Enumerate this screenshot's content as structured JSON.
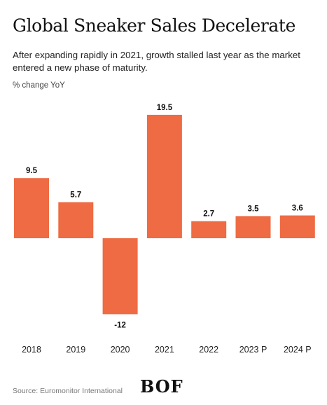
{
  "header": {
    "title": "Global Sneaker Sales Decelerate",
    "subtitle": "After expanding rapidly in 2021, growth stalled last year as the market entered a new phase of maturity.",
    "unit_label": "% change YoY"
  },
  "footer": {
    "source": "Source: Euromonitor International",
    "logo": "BOF"
  },
  "colors": {
    "bar": "#EE6B43",
    "text": "#111111"
  },
  "chart_data": {
    "type": "bar",
    "categories": [
      "2018",
      "2019",
      "2020",
      "2021",
      "2022",
      "2023 P",
      "2024 P"
    ],
    "values": [
      9.5,
      5.7,
      -12,
      19.5,
      2.7,
      3.5,
      3.6
    ],
    "data_labels": [
      "9.5",
      "5.7",
      "-12",
      "19.5",
      "2.7",
      "3.5",
      "3.6"
    ],
    "title": "Global Sneaker Sales Decelerate",
    "ylabel": "% change YoY",
    "xlabel": "",
    "ylim": [
      -12,
      19.5
    ],
    "grid": false,
    "legend": "none"
  }
}
